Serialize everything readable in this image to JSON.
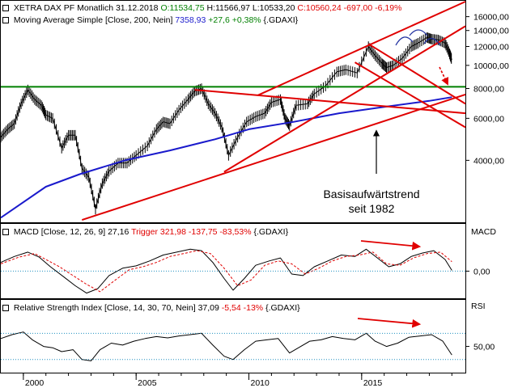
{
  "header": {
    "p1_symbol": "XETRA DAX PF Monatlich",
    "p1_date": "31.12.2018",
    "p1_open": "O:11534,75",
    "p1_high": "H:11566,97",
    "p1_low": "L:10533,20",
    "p1_close": "C:10560,24 -697,00 -6,19%",
    "p1_ma_label": "Moving Average Simple [Close, 200, Nein]",
    "p1_ma_value": "7358,93",
    "p1_ma_change": "+27,6 +0,38%",
    "p1_ma_source": "{.GDAXI}",
    "p2_label": "MACD [Close, 12, 26, 9]",
    "p2_value": "27,16",
    "p2_trigger": "Trigger 321,98 -137,75 -83,53%",
    "p2_source": "{.GDAXI}",
    "p3_label": "Relative Strength Index [Close, 14, 30, 70, Nein]",
    "p3_value": "37,09",
    "p3_change": "-5,54 -13%",
    "p3_source": "{.GDAXI}"
  },
  "colors": {
    "price": "#000000",
    "ma200": "#1a1acc",
    "trend": "#e00000",
    "support": "#008000",
    "macd_signal": "#e00000",
    "ref_line": "#2090c0",
    "green_text": "#008000",
    "red_text": "#e00000",
    "blue_text": "#1a1acc"
  },
  "annotation": {
    "line1": "Basisaufwärtstrend",
    "line2": "seit 1982"
  },
  "panel_labels": {
    "macd": "MACD",
    "rsi": "RSI"
  },
  "chart_data": [
    {
      "type": "line",
      "panel": "price",
      "scale": "log",
      "ylim": [
        2200,
        18500
      ],
      "yticks": [
        4000,
        6000,
        8000,
        10000,
        12000,
        14000,
        16000
      ],
      "ytick_labels": [
        "4000,00",
        "6000,00",
        "8000,00",
        "10000,00",
        "12000,00",
        "14000,00",
        "16000,00"
      ],
      "xlim": [
        1999.0,
        2019.6
      ],
      "xticks": [
        2000,
        2005,
        2010,
        2015
      ],
      "xtick_labels": [
        "2000",
        "2005",
        "2010",
        "2015"
      ],
      "series": [
        {
          "role": "price",
          "x": [
            1999.0,
            1999.3,
            1999.6,
            1999.9,
            2000.2,
            2000.5,
            2000.8,
            2001.0,
            2001.3,
            2001.7,
            2002.0,
            2002.3,
            2002.6,
            2002.9,
            2003.2,
            2003.5,
            2003.8,
            2004.2,
            2004.6,
            2005.0,
            2005.5,
            2005.9,
            2006.2,
            2006.5,
            2006.9,
            2007.3,
            2007.6,
            2007.9,
            2008.2,
            2008.5,
            2008.8,
            2009.1,
            2009.5,
            2009.9,
            2010.3,
            2010.7,
            2011.0,
            2011.4,
            2011.6,
            2011.8,
            2012.1,
            2012.6,
            2012.9,
            2013.4,
            2013.9,
            2014.3,
            2014.8,
            2015.3,
            2015.6,
            2015.9,
            2016.1,
            2016.4,
            2016.8,
            2017.2,
            2017.5,
            2017.9,
            2018.1,
            2018.4,
            2018.7,
            2018.9,
            2019.0
          ],
          "y": [
            5000,
            5400,
            5700,
            6900,
            7900,
            7200,
            6800,
            6200,
            6000,
            4500,
            5100,
            5100,
            3700,
            3400,
            2500,
            3200,
            3600,
            3900,
            3900,
            4200,
            4600,
            5400,
            5800,
            5700,
            6500,
            7200,
            7800,
            8000,
            6900,
            6300,
            5500,
            4200,
            5000,
            5800,
            6100,
            6300,
            7000,
            7200,
            6000,
            5600,
            6800,
            6900,
            7600,
            8200,
            9400,
            9600,
            9300,
            12000,
            11000,
            10200,
            9800,
            10000,
            10700,
            12000,
            12400,
            13100,
            12900,
            12800,
            12400,
            11200,
            10560
          ]
        },
        {
          "role": "ma200",
          "x": [
            1999.0,
            2001.0,
            2002.5,
            2004.5,
            2006.5,
            2008.5,
            2010.0,
            2012.0,
            2014.0,
            2016.0,
            2018.0,
            2019.0
          ],
          "y": [
            2300,
            3100,
            3500,
            4000,
            4400,
            4900,
            5400,
            5800,
            6300,
            6700,
            7100,
            7359
          ]
        },
        {
          "role": "support",
          "x": [
            1999.0,
            2019.6
          ],
          "y": [
            8130,
            8130
          ]
        },
        {
          "role": "trend",
          "x": [
            2002.6,
            2019.6
          ],
          "y": [
            2250,
            7550
          ]
        },
        {
          "role": "trend",
          "x": [
            2008.9,
            2019.6
          ],
          "y": [
            3580,
            14600
          ]
        },
        {
          "role": "trend",
          "x": [
            2010.4,
            2019.6
          ],
          "y": [
            7500,
            18500
          ]
        },
        {
          "role": "trend",
          "x": [
            2007.6,
            2019.6
          ],
          "y": [
            7900,
            6300
          ]
        },
        {
          "role": "trend",
          "x": [
            2015.3,
            2019.6
          ],
          "y": [
            12300,
            6900
          ]
        },
        {
          "role": "trend",
          "x": [
            2014.7,
            2019.6
          ],
          "y": [
            10300,
            5500
          ]
        }
      ]
    },
    {
      "type": "line",
      "panel": "macd",
      "ylim": [
        -900,
        1200
      ],
      "yticks": [
        0
      ],
      "ytick_labels": [
        "0,00"
      ],
      "series": [
        {
          "role": "macd",
          "x": [
            1999.0,
            1999.6,
            2000.2,
            2000.7,
            2001.2,
            2001.8,
            2002.3,
            2002.8,
            2003.3,
            2003.8,
            2004.4,
            2005.0,
            2005.6,
            2006.2,
            2006.8,
            2007.4,
            2007.9,
            2008.4,
            2008.9,
            2009.3,
            2009.8,
            2010.3,
            2010.9,
            2011.4,
            2011.9,
            2012.4,
            2012.9,
            2013.5,
            2014.1,
            2014.7,
            2015.2,
            2015.7,
            2016.2,
            2016.7,
            2017.2,
            2017.7,
            2018.2,
            2018.7,
            2019.0
          ],
          "y": [
            300,
            500,
            650,
            480,
            150,
            -200,
            -500,
            -750,
            -600,
            -150,
            100,
            180,
            350,
            550,
            650,
            750,
            700,
            300,
            -250,
            -650,
            -250,
            200,
            350,
            450,
            -100,
            -150,
            150,
            350,
            550,
            500,
            750,
            450,
            150,
            250,
            500,
            620,
            700,
            400,
            27
          ]
        },
        {
          "role": "signal",
          "x": [
            1999.0,
            1999.8,
            2000.5,
            2001.0,
            2001.6,
            2002.2,
            2002.8,
            2003.4,
            2004.0,
            2004.7,
            2005.3,
            2005.9,
            2006.5,
            2007.1,
            2007.7,
            2008.3,
            2008.9,
            2009.5,
            2010.1,
            2010.7,
            2011.3,
            2011.9,
            2012.5,
            2013.1,
            2013.7,
            2014.3,
            2014.9,
            2015.5,
            2016.1,
            2016.7,
            2017.3,
            2017.9,
            2018.5,
            2019.0
          ],
          "y": [
            250,
            480,
            600,
            400,
            150,
            -150,
            -450,
            -700,
            -350,
            50,
            150,
            300,
            500,
            600,
            700,
            600,
            100,
            -500,
            -300,
            200,
            350,
            250,
            -100,
            100,
            350,
            500,
            550,
            650,
            250,
            200,
            450,
            600,
            650,
            322
          ]
        }
      ]
    },
    {
      "type": "line",
      "panel": "rsi",
      "ylim": [
        10,
        100
      ],
      "yticks": [
        50
      ],
      "ytick_labels": [
        "50,00"
      ],
      "reference_lines": [
        30,
        70
      ],
      "series": [
        {
          "role": "rsi",
          "x": [
            1999.0,
            1999.5,
            2000.0,
            2000.4,
            2000.9,
            2001.3,
            2001.7,
            2002.2,
            2002.6,
            2003.0,
            2003.4,
            2003.9,
            2004.4,
            2004.9,
            2005.4,
            2005.9,
            2006.4,
            2006.9,
            2007.4,
            2007.9,
            2008.4,
            2008.9,
            2009.3,
            2009.8,
            2010.3,
            2010.8,
            2011.3,
            2011.8,
            2012.2,
            2012.7,
            2013.2,
            2013.7,
            2014.2,
            2014.7,
            2015.2,
            2015.6,
            2016.1,
            2016.6,
            2017.1,
            2017.6,
            2018.1,
            2018.6,
            2019.0
          ],
          "y": [
            62,
            68,
            72,
            60,
            50,
            48,
            42,
            45,
            30,
            28,
            45,
            55,
            52,
            58,
            62,
            65,
            63,
            66,
            68,
            70,
            52,
            35,
            30,
            45,
            58,
            60,
            62,
            40,
            48,
            58,
            60,
            65,
            62,
            60,
            70,
            58,
            50,
            55,
            64,
            66,
            68,
            58,
            37
          ]
        }
      ]
    }
  ]
}
